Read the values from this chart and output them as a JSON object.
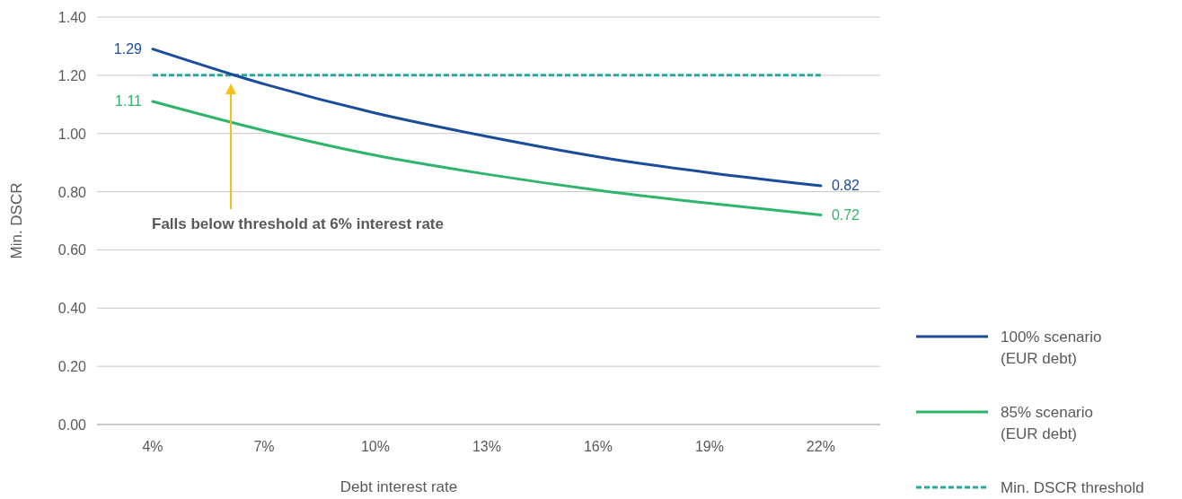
{
  "chart_data": {
    "type": "line",
    "xlabel": "Debt interest rate",
    "ylabel": "Min. DSCR",
    "x": [
      4,
      7,
      10,
      13,
      16,
      19,
      22
    ],
    "xlim": [
      2.5,
      23.6
    ],
    "xticks": [
      {
        "value": 4,
        "label": "4%"
      },
      {
        "value": 7,
        "label": "7%"
      },
      {
        "value": 10,
        "label": "10%"
      },
      {
        "value": 13,
        "label": "13%"
      },
      {
        "value": 16,
        "label": "16%"
      },
      {
        "value": 19,
        "label": "19%"
      },
      {
        "value": 22,
        "label": "22%"
      }
    ],
    "ylim": [
      0,
      1.4
    ],
    "yticks": [
      {
        "value": 0,
        "label": "0.00"
      },
      {
        "value": 0.2,
        "label": "0.20"
      },
      {
        "value": 0.4,
        "label": "0.40"
      },
      {
        "value": 0.6,
        "label": "0.60"
      },
      {
        "value": 0.8,
        "label": "0.80"
      },
      {
        "value": 1,
        "label": "1.00"
      },
      {
        "value": 1.2,
        "label": "1.20"
      },
      {
        "value": 1.4,
        "label": "1.40"
      }
    ],
    "series": [
      {
        "name": "100% scenario (EUR debt)",
        "color": "#1a4c9b",
        "values": [
          1.29,
          1.17,
          1.07,
          0.99,
          0.92,
          0.865,
          0.82
        ],
        "value_labels": [
          "1.29",
          null,
          null,
          null,
          null,
          null,
          "0.82"
        ]
      },
      {
        "name": "85% scenario  (EUR debt)",
        "color": "#2fb56b",
        "values": [
          1.11,
          1.01,
          0.925,
          0.86,
          0.805,
          0.76,
          0.72
        ],
        "value_labels": [
          "1.11",
          null,
          null,
          null,
          null,
          null,
          "0.72"
        ]
      }
    ],
    "ref_lines": [
      {
        "axis": "y",
        "value": 1.2,
        "label": "Min. DSCR threshold",
        "color": "#2aa69b",
        "line_style": "dashed"
      }
    ],
    "annotations": [
      "Falls below threshold at 6% interest rate"
    ],
    "grid": "y",
    "legend": "right",
    "marker": "none",
    "line_style": "solid"
  }
}
